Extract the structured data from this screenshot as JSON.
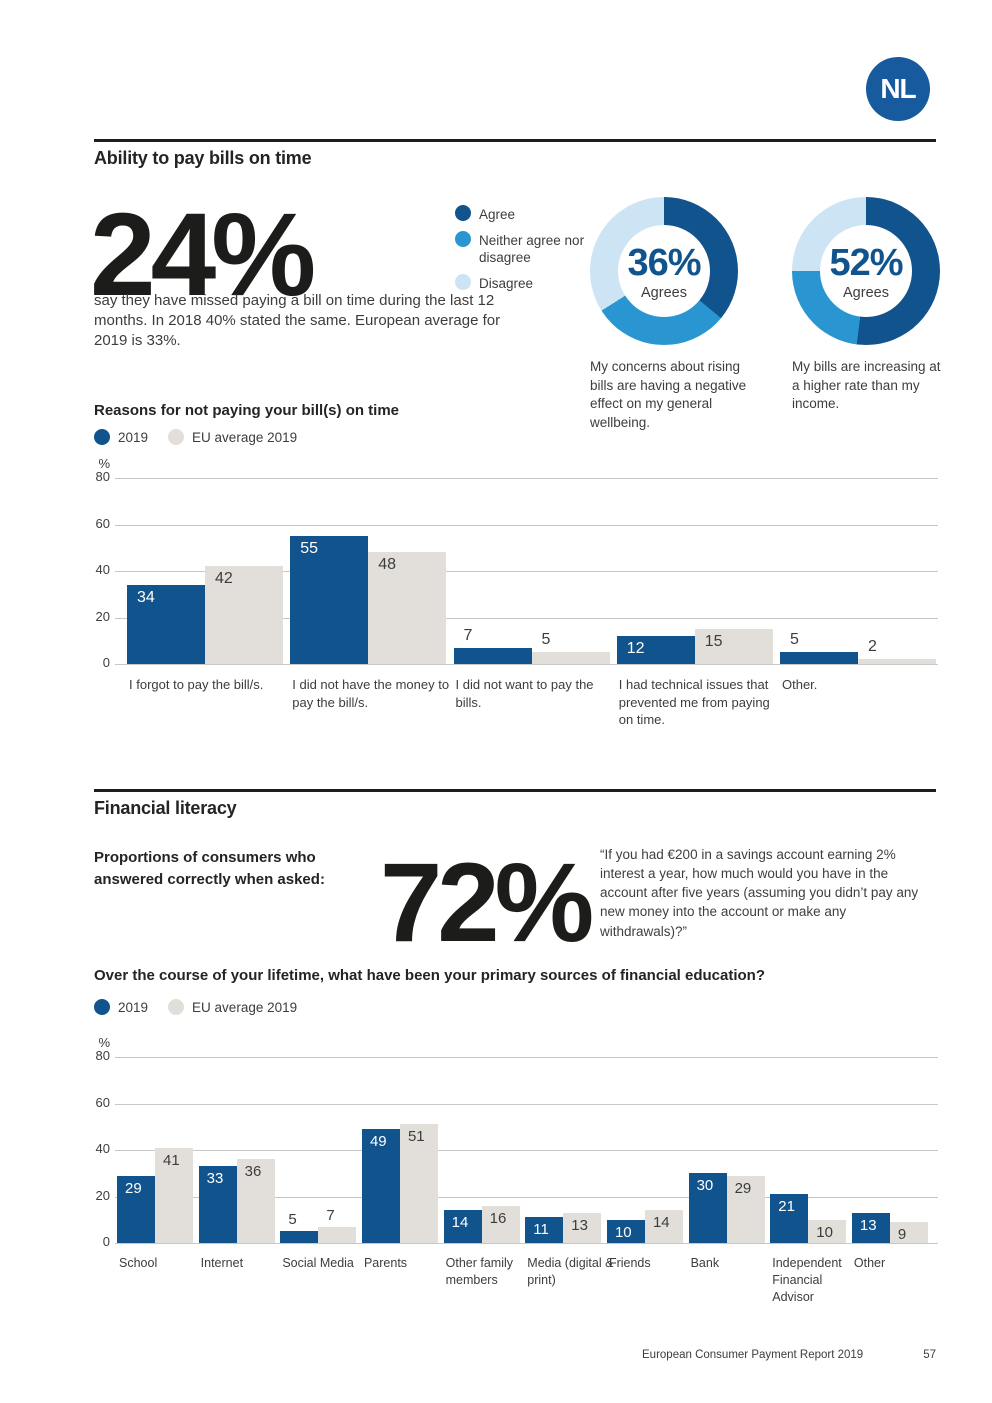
{
  "badge_label": "NL",
  "colors": {
    "agree_blue": "#11538c",
    "neither_blue": "#2a96d1",
    "disagree_light_blue": "#cde4f4",
    "eu_average_gray": "#e2dfda",
    "heading_black": "#242424"
  },
  "section_bills": {
    "title": "Ability to pay bills on time",
    "stat_value": "24%",
    "stat_description": "say they have missed paying a bill on time during the last 12 months. In 2018 40% stated the same. European average for 2019 is 33%.",
    "agree_legend": [
      {
        "label": "Agree",
        "color": "#11538c"
      },
      {
        "label": "Neither agree nor disagree",
        "color": "#2a96d1"
      },
      {
        "label": "Disagree",
        "color": "#cde4f4"
      }
    ],
    "donuts": [
      {
        "value": "36%",
        "sublabel": "Agrees",
        "caption": "My concerns about rising bills are having a negative effect on my general wellbeing.",
        "segments": [
          36,
          30,
          34
        ]
      },
      {
        "value": "52%",
        "sublabel": "Agrees",
        "caption": "My bills are increasing at a higher rate than my income.",
        "segments": [
          52,
          23,
          25
        ]
      }
    ]
  },
  "section_literacy": {
    "title": "Financial literacy",
    "lead": "Proportions of consumers who answered correctly when asked:",
    "stat_value": "72%",
    "quote": "“If you had €200 in a savings account earning 2% interest a year, how much would you have in the account after five years (assuming you didn’t pay any new money into the account or make any withdrawals)?”"
  },
  "chart_data": [
    {
      "type": "bar",
      "title": "Reasons for not paying your bill(s) on time",
      "ylabel": "%",
      "ylim": [
        0,
        80
      ],
      "yticks": [
        80,
        60,
        40,
        20,
        0
      ],
      "grid": true,
      "legend_position": "top-left",
      "categories": [
        "I forgot to pay the bill/s.",
        "I did not have the money to pay the bill/s.",
        "I did not want to pay the bills.",
        "I had technical issues that prevented me from paying on time.",
        "Other."
      ],
      "series": [
        {
          "name": "2019",
          "color": "#11538c",
          "values": [
            34,
            55,
            7,
            12,
            5
          ]
        },
        {
          "name": "EU average 2019",
          "color": "#e2dfda",
          "values": [
            42,
            48,
            5,
            15,
            2
          ]
        }
      ]
    },
    {
      "type": "bar",
      "title": "Over the course of your lifetime, what have been your primary sources of financial education?",
      "ylabel": "%",
      "ylim": [
        0,
        80
      ],
      "yticks": [
        80,
        60,
        40,
        20,
        0
      ],
      "grid": true,
      "legend_position": "top-left",
      "categories": [
        "School",
        "Internet",
        "Social Media",
        "Parents",
        "Other family members",
        "Media (digital & print)",
        "Friends",
        "Bank",
        "Independent Financial Advisor",
        "Other"
      ],
      "series": [
        {
          "name": "2019",
          "color": "#11538c",
          "values": [
            29,
            33,
            5,
            49,
            14,
            11,
            10,
            30,
            21,
            13
          ]
        },
        {
          "name": "EU average 2019",
          "color": "#e2dfda",
          "values": [
            41,
            36,
            7,
            51,
            16,
            13,
            14,
            29,
            10,
            9
          ]
        }
      ]
    }
  ],
  "footer": {
    "report_title": "European Consumer Payment Report 2019",
    "page_number": "57"
  }
}
